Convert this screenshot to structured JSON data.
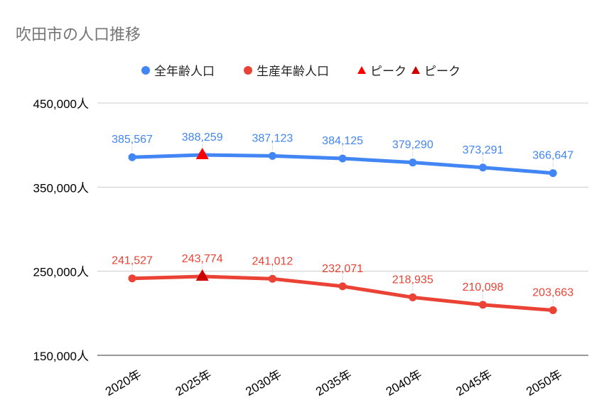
{
  "chart_data": {
    "type": "line",
    "title": "吹田市の人口推移",
    "categories": [
      "2020年",
      "2025年",
      "2030年",
      "2035年",
      "2040年",
      "2045年",
      "2050年"
    ],
    "series": [
      {
        "name": "全年齢人口",
        "color": "#4285f4",
        "values": [
          385567,
          388259,
          387123,
          384125,
          379290,
          373291,
          366647
        ],
        "labels": [
          "385,567",
          "388,259",
          "387,123",
          "384,125",
          "379,290",
          "373,291",
          "366,647"
        ]
      },
      {
        "name": "生産年齢人口",
        "color": "#ea4335",
        "values": [
          241527,
          243774,
          241012,
          232071,
          218935,
          210098,
          203663
        ],
        "labels": [
          "241,527",
          "243,774",
          "241,012",
          "232,071",
          "218,935",
          "210,098",
          "203,663"
        ]
      }
    ],
    "peaks": [
      {
        "name": "ピーク",
        "series": 0,
        "category": "2025年",
        "value": 388259,
        "color": "#ff0000",
        "marker": "triangle"
      },
      {
        "name": "ピーク",
        "series": 1,
        "category": "2025年",
        "value": 243774,
        "color": "#cc0000",
        "marker": "triangle"
      }
    ],
    "yticks": [
      "150,000人",
      "250,000人",
      "350,000人",
      "450,000人"
    ],
    "ytick_values": [
      150000,
      250000,
      350000,
      450000
    ],
    "ylim": [
      150000,
      450000
    ],
    "grid": true,
    "legend": "top"
  }
}
